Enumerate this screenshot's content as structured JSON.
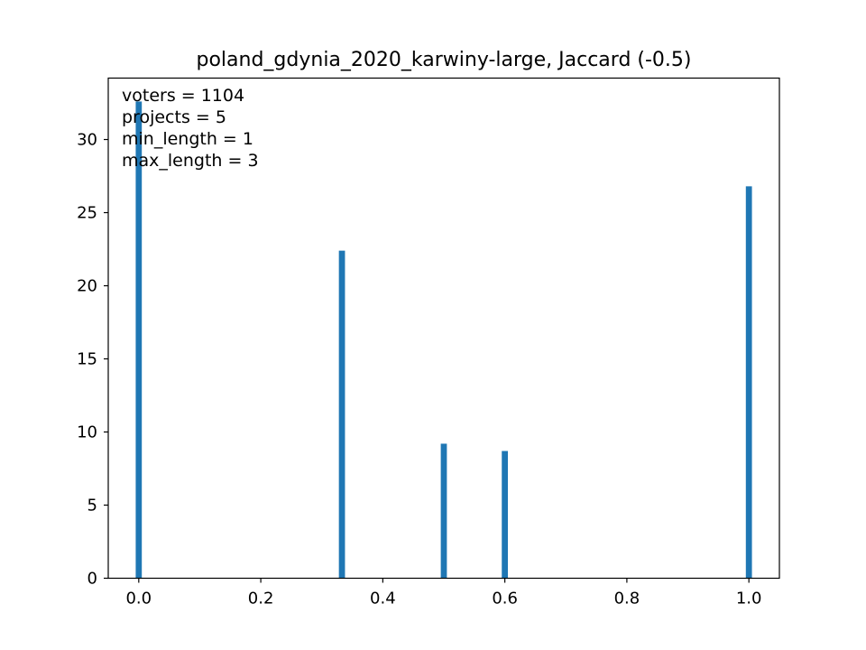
{
  "chart_data": {
    "type": "bar",
    "title": "poland_gdynia_2020_karwiny-large, Jaccard (-0.5)",
    "xlabel": "",
    "ylabel": "",
    "xlim": [
      -0.05,
      1.05
    ],
    "ylim": [
      0,
      34.2
    ],
    "x_ticks": [
      "0.0",
      "0.2",
      "0.4",
      "0.6",
      "0.8",
      "1.0"
    ],
    "x_tick_values": [
      0.0,
      0.2,
      0.4,
      0.6,
      0.8,
      1.0
    ],
    "y_ticks": [
      "0",
      "5",
      "10",
      "15",
      "20",
      "25",
      "30"
    ],
    "y_tick_values": [
      0,
      5,
      10,
      15,
      20,
      25,
      30
    ],
    "bar_width": 0.01,
    "bars": [
      {
        "x": 0.0,
        "value": 32.6
      },
      {
        "x": 0.333,
        "value": 22.4
      },
      {
        "x": 0.5,
        "value": 9.2
      },
      {
        "x": 0.6,
        "value": 8.7
      },
      {
        "x": 1.0,
        "value": 26.8
      }
    ],
    "bar_color": "#1f77b4",
    "grid": false,
    "annotations": [
      "voters = 1104",
      "projects = 5",
      "min_length = 1",
      "max_length = 3"
    ]
  }
}
